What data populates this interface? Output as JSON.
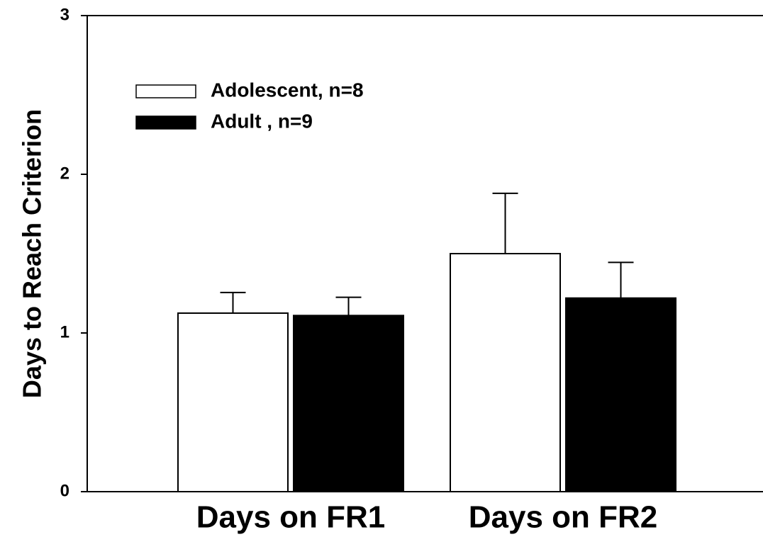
{
  "chart_data": {
    "type": "bar",
    "title": "",
    "xlabel": "",
    "ylabel": "Days to Reach Criterion",
    "ylim": [
      0,
      3
    ],
    "yticks": [
      0,
      1,
      2,
      3
    ],
    "categories": [
      "Days on FR1",
      "Days on FR2"
    ],
    "series": [
      {
        "name": "Adolescent, n=8",
        "values": [
          1.125,
          1.5
        ],
        "errors": [
          0.13,
          0.38
        ],
        "color": "#ffffff"
      },
      {
        "name": "Adult , n=9",
        "values": [
          1.11,
          1.22
        ],
        "errors": [
          0.115,
          0.225
        ],
        "color": "#000000"
      }
    ],
    "legend_position": "top-left",
    "grid": false
  }
}
